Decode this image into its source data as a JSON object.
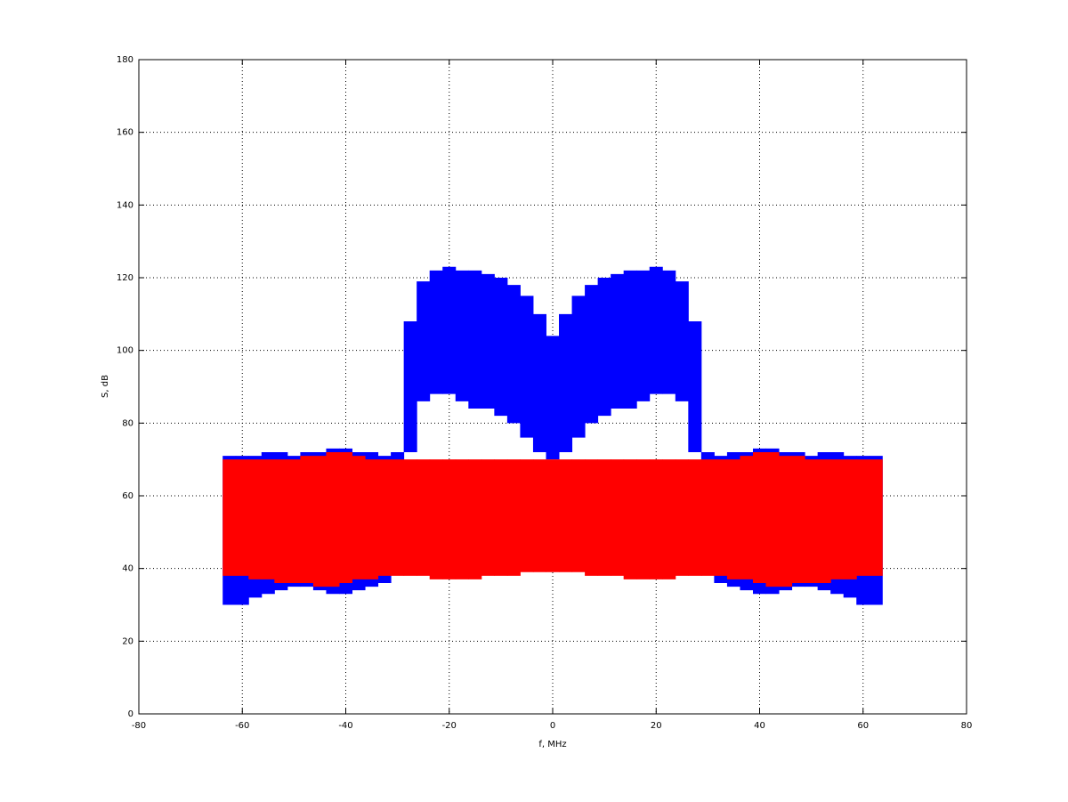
{
  "chart_data": {
    "type": "range",
    "xlabel": "f, MHz",
    "ylabel": "S, dB",
    "xlim": [
      -80,
      80
    ],
    "xticks": [
      -80,
      -60,
      -40,
      -20,
      0,
      20,
      40,
      60,
      80
    ],
    "ylim": [
      0,
      180
    ],
    "yticks": [
      0,
      20,
      40,
      60,
      80,
      100,
      120,
      140,
      160,
      180
    ],
    "grid": true,
    "x": [
      -62.5,
      -60,
      -57.5,
      -55,
      -52.5,
      -50,
      -47.5,
      -45,
      -42.5,
      -40,
      -37.5,
      -35,
      -32.5,
      -30,
      -27.5,
      -25,
      -22.5,
      -20,
      -17.5,
      -15,
      -12.5,
      -10,
      -7.5,
      -5,
      -2.5,
      0,
      2.5,
      5,
      7.5,
      10,
      12.5,
      15,
      17.5,
      20,
      22.5,
      25,
      27.5,
      30,
      32.5,
      35,
      37.5,
      40,
      42.5,
      45,
      47.5,
      50,
      52.5,
      55,
      57.5,
      60,
      62.5
    ],
    "series": [
      {
        "color": "#0000ff",
        "high": [
          71,
          71,
          71,
          72,
          72,
          71,
          72,
          72,
          73,
          73,
          72,
          72,
          71,
          72,
          108,
          119,
          122,
          123,
          122,
          122,
          121,
          120,
          118,
          115,
          110,
          104,
          110,
          115,
          118,
          120,
          121,
          122,
          122,
          123,
          122,
          119,
          108,
          72,
          71,
          72,
          72,
          73,
          73,
          72,
          72,
          71,
          72,
          72,
          71,
          71,
          71
        ],
        "low": [
          30,
          30,
          32,
          33,
          34,
          35,
          35,
          34,
          33,
          33,
          34,
          35,
          36,
          40,
          72,
          86,
          88,
          88,
          86,
          84,
          84,
          82,
          80,
          76,
          72,
          70,
          72,
          76,
          80,
          82,
          84,
          84,
          86,
          88,
          88,
          86,
          72,
          40,
          36,
          35,
          34,
          33,
          33,
          34,
          35,
          35,
          34,
          33,
          32,
          30,
          30
        ]
      },
      {
        "color": "#ff0000",
        "high": [
          70,
          70,
          70,
          70,
          70,
          70,
          71,
          71,
          72,
          72,
          71,
          70,
          70,
          70,
          70,
          70,
          70,
          70,
          70,
          70,
          70,
          70,
          70,
          70,
          70,
          70,
          70,
          70,
          70,
          70,
          70,
          70,
          70,
          70,
          70,
          70,
          70,
          70,
          70,
          70,
          71,
          72,
          72,
          71,
          71,
          70,
          70,
          70,
          70,
          70,
          70
        ],
        "low": [
          38,
          38,
          37,
          37,
          36,
          36,
          36,
          35,
          35,
          36,
          37,
          37,
          38,
          38,
          38,
          38,
          37,
          37,
          37,
          37,
          38,
          38,
          38,
          39,
          39,
          39,
          39,
          39,
          38,
          38,
          38,
          37,
          37,
          37,
          37,
          38,
          38,
          38,
          38,
          37,
          37,
          36,
          35,
          35,
          36,
          36,
          36,
          37,
          37,
          38,
          38
        ]
      }
    ]
  }
}
